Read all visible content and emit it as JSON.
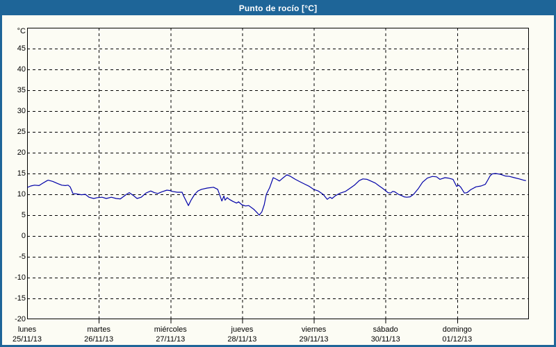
{
  "window": {
    "title": "Punto de rocío [°C]",
    "frame_color": "#1E6598",
    "background_color": "#FCFCF4",
    "text_color": "#000000"
  },
  "chart_data": {
    "type": "line",
    "title": "Punto de rocío [°C]",
    "ylabel": "°C",
    "xlabel": "",
    "ylim": [
      -20,
      50
    ],
    "yticks": [
      45,
      40,
      35,
      30,
      25,
      20,
      15,
      10,
      5,
      0,
      -5,
      -10,
      -15,
      -20
    ],
    "grid": "dashed",
    "legend": "none",
    "x_unit": "hours_from_monday_00h",
    "xlim": [
      0,
      168
    ],
    "day_span_hours": 24,
    "categories": [
      {
        "day": "lunes",
        "date": "25/11/13"
      },
      {
        "day": "martes",
        "date": "26/11/13"
      },
      {
        "day": "miércoles",
        "date": "27/11/13"
      },
      {
        "day": "jueves",
        "date": "28/11/13"
      },
      {
        "day": "viernes",
        "date": "29/11/13"
      },
      {
        "day": "sábado",
        "date": "30/11/13"
      },
      {
        "day": "domingo",
        "date": "01/12/13"
      }
    ],
    "series": [
      {
        "name": "Punto de rocío",
        "color": "#0000A8",
        "points": [
          [
            0.2,
            11.7
          ],
          [
            1.2,
            12.0
          ],
          [
            2.5,
            12.2
          ],
          [
            4.0,
            12.1
          ],
          [
            5.1,
            12.6
          ],
          [
            6.5,
            13.2
          ],
          [
            7.0,
            13.4
          ],
          [
            8.6,
            13.1
          ],
          [
            10.2,
            12.6
          ],
          [
            11.6,
            12.2
          ],
          [
            12.8,
            12.1
          ],
          [
            13.7,
            12.2
          ],
          [
            14.4,
            11.8
          ],
          [
            14.9,
            11.0
          ],
          [
            15.3,
            10.2
          ],
          [
            16.5,
            10.1
          ],
          [
            18.2,
            9.9
          ],
          [
            19.5,
            10.0
          ],
          [
            20.7,
            9.3
          ],
          [
            22.3,
            9.0
          ],
          [
            23.5,
            9.2
          ],
          [
            25.1,
            9.3
          ],
          [
            26.5,
            9.0
          ],
          [
            28.2,
            9.3
          ],
          [
            29.8,
            9.0
          ],
          [
            31.2,
            8.9
          ],
          [
            33.3,
            10.0
          ],
          [
            34.2,
            10.4
          ],
          [
            35.6,
            9.7
          ],
          [
            36.8,
            9.0
          ],
          [
            38.2,
            9.3
          ],
          [
            39.8,
            10.3
          ],
          [
            41.4,
            10.8
          ],
          [
            42.6,
            10.4
          ],
          [
            43.8,
            10.2
          ],
          [
            45.1,
            10.6
          ],
          [
            46.8,
            11.0
          ],
          [
            47.9,
            10.9
          ],
          [
            48.6,
            10.7
          ],
          [
            50.3,
            10.5
          ],
          [
            51.9,
            10.5
          ],
          [
            52.4,
            9.6
          ],
          [
            54.0,
            7.3
          ],
          [
            54.9,
            8.6
          ],
          [
            56.1,
            10.0
          ],
          [
            57.2,
            10.8
          ],
          [
            58.4,
            11.2
          ],
          [
            60.3,
            11.5
          ],
          [
            62.4,
            11.7
          ],
          [
            63.8,
            11.2
          ],
          [
            64.7,
            9.4
          ],
          [
            65.2,
            8.4
          ],
          [
            65.9,
            9.6
          ],
          [
            66.3,
            8.6
          ],
          [
            67.0,
            9.2
          ],
          [
            67.7,
            8.8
          ],
          [
            68.9,
            8.3
          ],
          [
            70.1,
            7.9
          ],
          [
            70.8,
            8.2
          ],
          [
            71.9,
            7.5
          ],
          [
            73.1,
            7.2
          ],
          [
            74.2,
            7.3
          ],
          [
            75.9,
            6.4
          ],
          [
            77.0,
            5.6
          ],
          [
            77.7,
            5.0
          ],
          [
            78.6,
            5.8
          ],
          [
            79.4,
            7.5
          ],
          [
            80.1,
            10.0
          ],
          [
            81.2,
            11.6
          ],
          [
            82.4,
            14.0
          ],
          [
            83.5,
            13.6
          ],
          [
            84.5,
            13.2
          ],
          [
            85.6,
            13.9
          ],
          [
            87.0,
            14.7
          ],
          [
            88.2,
            14.3
          ],
          [
            89.8,
            13.6
          ],
          [
            91.4,
            13.0
          ],
          [
            92.8,
            12.5
          ],
          [
            94.5,
            11.9
          ],
          [
            95.9,
            11.2
          ],
          [
            96.3,
            11.1
          ],
          [
            97.5,
            10.8
          ],
          [
            99.1,
            10.0
          ],
          [
            100.5,
            8.8
          ],
          [
            101.4,
            9.3
          ],
          [
            102.1,
            9.0
          ],
          [
            103.3,
            9.7
          ],
          [
            104.9,
            10.3
          ],
          [
            106.6,
            10.7
          ],
          [
            108.0,
            11.4
          ],
          [
            109.6,
            12.2
          ],
          [
            111.2,
            13.3
          ],
          [
            112.4,
            13.7
          ],
          [
            113.8,
            13.6
          ],
          [
            115.4,
            13.1
          ],
          [
            116.6,
            12.7
          ],
          [
            117.7,
            12.1
          ],
          [
            118.9,
            11.5
          ],
          [
            119.8,
            11.0
          ],
          [
            120.8,
            10.4
          ],
          [
            121.7,
            10.3
          ],
          [
            122.4,
            10.7
          ],
          [
            123.1,
            10.6
          ],
          [
            124.3,
            10.0
          ],
          [
            125.4,
            9.7
          ],
          [
            126.2,
            9.4
          ],
          [
            127.1,
            9.3
          ],
          [
            128.2,
            9.4
          ],
          [
            129.4,
            10.0
          ],
          [
            131.0,
            11.4
          ],
          [
            132.4,
            12.9
          ],
          [
            134.0,
            13.9
          ],
          [
            135.7,
            14.3
          ],
          [
            137.1,
            14.2
          ],
          [
            138.2,
            13.6
          ],
          [
            139.9,
            14.0
          ],
          [
            141.0,
            13.9
          ],
          [
            142.6,
            13.6
          ],
          [
            143.8,
            11.9
          ],
          [
            144.5,
            12.2
          ],
          [
            145.2,
            11.7
          ],
          [
            146.4,
            10.3
          ],
          [
            147.3,
            10.4
          ],
          [
            148.5,
            11.1
          ],
          [
            150.3,
            11.8
          ],
          [
            152.0,
            12.0
          ],
          [
            153.4,
            12.4
          ],
          [
            154.3,
            13.5
          ],
          [
            155.0,
            14.4
          ],
          [
            155.7,
            14.9
          ],
          [
            156.8,
            15.0
          ],
          [
            158.5,
            14.8
          ],
          [
            160.1,
            14.4
          ],
          [
            161.5,
            14.3
          ],
          [
            163.1,
            14.0
          ],
          [
            164.8,
            13.7
          ],
          [
            166.2,
            13.4
          ],
          [
            166.9,
            13.3
          ]
        ]
      }
    ]
  }
}
